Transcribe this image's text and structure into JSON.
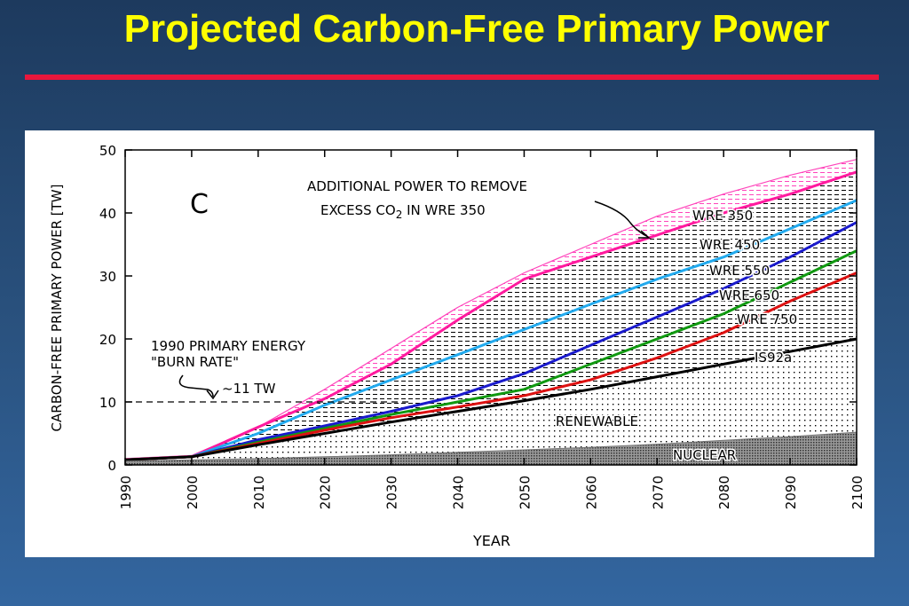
{
  "slide": {
    "title": "Projected Carbon-Free Primary Power",
    "title_color": "#ffff00",
    "rule_color": "#e8173c"
  },
  "chart_data": {
    "type": "area",
    "panel_letter": "C",
    "xlabel": "YEAR",
    "ylabel": "CARBON-FREE PRIMARY POWER [TW]",
    "xlim": [
      1990,
      2100
    ],
    "ylim": [
      0,
      50
    ],
    "x_ticks": [
      1990,
      2000,
      2010,
      2020,
      2030,
      2040,
      2050,
      2060,
      2070,
      2080,
      2090,
      2100
    ],
    "y_ticks": [
      0,
      10,
      20,
      30,
      40,
      50
    ],
    "grid": false,
    "series": [
      {
        "name": "WRE 350 upper",
        "color": "#ff44bb",
        "x": [
          1990,
          2000,
          2010,
          2020,
          2030,
          2040,
          2050,
          2060,
          2070,
          2080,
          2090,
          2100
        ],
        "y": [
          1.0,
          1.5,
          6.0,
          12.0,
          18.5,
          25.0,
          30.5,
          35.0,
          39.5,
          43.0,
          46.0,
          48.5
        ]
      },
      {
        "name": "WRE 350",
        "color": "#ff1a9e",
        "x": [
          1990,
          2000,
          2010,
          2020,
          2030,
          2040,
          2050,
          2060,
          2070,
          2080,
          2090,
          2100
        ],
        "y": [
          0.8,
          1.3,
          6.0,
          10.5,
          16.0,
          23.0,
          29.5,
          33.0,
          36.5,
          40.0,
          43.0,
          46.5
        ]
      },
      {
        "name": "WRE 450",
        "color": "#22aaee",
        "x": [
          1990,
          2000,
          2010,
          2020,
          2030,
          2040,
          2050,
          2060,
          2070,
          2080,
          2090,
          2100
        ],
        "y": [
          0.8,
          1.3,
          5.0,
          9.5,
          13.5,
          17.5,
          21.5,
          25.5,
          29.5,
          33.0,
          37.5,
          42.0
        ]
      },
      {
        "name": "WRE 550",
        "color": "#1a1acc",
        "x": [
          1990,
          2000,
          2010,
          2020,
          2030,
          2040,
          2050,
          2060,
          2070,
          2080,
          2090,
          2100
        ],
        "y": [
          0.8,
          1.3,
          4.0,
          6.2,
          8.5,
          11.0,
          14.5,
          19.0,
          23.5,
          28.0,
          33.0,
          38.5
        ]
      },
      {
        "name": "WRE 650",
        "color": "#119911",
        "x": [
          1990,
          2000,
          2010,
          2020,
          2030,
          2040,
          2050,
          2060,
          2070,
          2080,
          2090,
          2100
        ],
        "y": [
          0.8,
          1.3,
          3.6,
          5.8,
          8.0,
          10.0,
          12.0,
          16.0,
          20.0,
          24.0,
          29.0,
          34.0
        ]
      },
      {
        "name": "WRE 750",
        "color": "#dd1111",
        "x": [
          1990,
          2000,
          2010,
          2020,
          2030,
          2040,
          2050,
          2060,
          2070,
          2080,
          2090,
          2100
        ],
        "y": [
          0.8,
          1.3,
          3.4,
          5.5,
          7.5,
          9.2,
          11.0,
          13.5,
          17.0,
          21.0,
          26.0,
          30.5
        ]
      },
      {
        "name": "IS92a",
        "color": "#000000",
        "x": [
          1990,
          2000,
          2010,
          2020,
          2030,
          2040,
          2050,
          2060,
          2070,
          2080,
          2090,
          2100
        ],
        "y": [
          0.8,
          1.3,
          3.2,
          5.0,
          6.8,
          8.5,
          10.2,
          12.0,
          14.0,
          16.0,
          18.0,
          20.0
        ]
      },
      {
        "name": "NUCLEAR",
        "color": "#777777",
        "x": [
          1990,
          2000,
          2010,
          2020,
          2030,
          2040,
          2050,
          2060,
          2070,
          2080,
          2090,
          2100
        ],
        "y": [
          0.6,
          0.8,
          1.0,
          1.3,
          1.6,
          2.0,
          2.4,
          2.8,
          3.3,
          3.9,
          4.5,
          5.2
        ]
      }
    ],
    "reference_line": {
      "y": 10,
      "x_range": [
        1990,
        2033
      ],
      "style": "dashed"
    },
    "labels": {
      "wre350": "WRE 350",
      "wre450": "WRE 450",
      "wre550": "WRE 550",
      "wre650": "WRE 650",
      "wre750": "WRE 750",
      "is92a": "IS92a",
      "renewable": "RENEWABLE",
      "nuclear": "NUCLEAR"
    },
    "annotations": {
      "additional_line1": "ADDITIONAL POWER TO REMOVE",
      "additional_line2_a": "EXCESS CO",
      "additional_line2_sub": "2",
      "additional_line2_b": " IN WRE 350",
      "burn_line1": "1990 PRIMARY ENERGY",
      "burn_line2": "\"BURN RATE\"",
      "burn_value": "~11 TW"
    }
  }
}
